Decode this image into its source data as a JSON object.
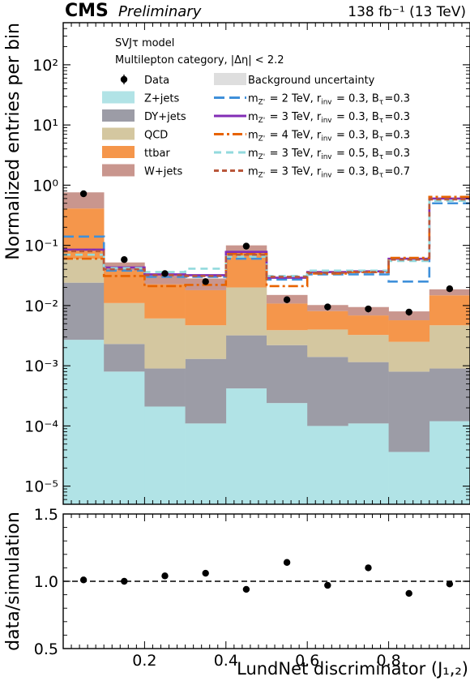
{
  "header": {
    "experiment": "CMS",
    "status": "Preliminary",
    "lumi": "138 fb⁻¹ (13 TeV)"
  },
  "chart_data": [
    {
      "type": "bar",
      "stacked": true,
      "yscale": "log",
      "ylim": [
        5e-06,
        500
      ],
      "xlim": [
        0.0,
        1.0
      ],
      "ylabel": "Normalized entries per bin",
      "ytick_labels": [
        "10⁻⁵",
        "10⁻⁴",
        "10⁻³",
        "10⁻²",
        "10⁻¹",
        "10⁰",
        "10¹",
        "10²"
      ],
      "ytick_values": [
        1e-05,
        0.0001,
        0.001,
        0.01,
        0.1,
        1,
        10,
        100
      ],
      "annotations": [
        "SVJτ model",
        "Multilepton category, |Δη| < 2.2"
      ],
      "bin_edges": [
        0.0,
        0.1,
        0.2,
        0.3,
        0.4,
        0.5,
        0.6,
        0.7,
        0.8,
        0.9,
        1.0
      ],
      "stack": [
        {
          "name": "Z+jets",
          "color": "#b1e3e6",
          "values": [
            0.0027,
            0.0008,
            0.00021,
            0.00011,
            0.00042,
            0.00024,
            0.0001,
            0.00011,
            3.7e-05,
            0.00012
          ]
        },
        {
          "name": "DY+jets",
          "color": "#9c9ca6",
          "values": [
            0.0213,
            0.0015,
            0.00069,
            0.00119,
            0.00278,
            0.00196,
            0.0013,
            0.00104,
            0.000763,
            0.00078
          ]
        },
        {
          "name": "QCD",
          "color": "#d4c7a0",
          "values": [
            0.036,
            0.0087,
            0.0052,
            0.0034,
            0.0168,
            0.0017,
            0.0026,
            0.0021,
            0.0017,
            0.0038
          ]
        },
        {
          "name": "ttbar",
          "color": "#f5964b",
          "values": [
            0.35,
            0.027,
            0.0165,
            0.0133,
            0.056,
            0.0069,
            0.0041,
            0.0036,
            0.0032,
            0.0101
          ]
        },
        {
          "name": "W+jets",
          "color": "#c9968e",
          "values": [
            0.35,
            0.014,
            0.0105,
            0.0102,
            0.024,
            0.0042,
            0.0021,
            0.0026,
            0.0023,
            0.0038
          ]
        }
      ],
      "data": {
        "name": "Data",
        "x": [
          0.05,
          0.15,
          0.25,
          0.35,
          0.45,
          0.55,
          0.65,
          0.75,
          0.85,
          0.95
        ],
        "y": [
          0.72,
          0.058,
          0.034,
          0.025,
          0.097,
          0.0125,
          0.0095,
          0.0088,
          0.0078,
          0.019
        ],
        "err": [
          0.04,
          0.004,
          0.003,
          0.002,
          0.006,
          0.0015,
          0.0012,
          0.0011,
          0.001,
          0.0015
        ]
      },
      "uncertainty_label": "Background uncertainty",
      "signals": [
        {
          "name": "m_{Z'} = 2 TeV, r_{inv} = 0.3, B_{τ}=0.3",
          "color": "#3f90da",
          "dash": "13,6",
          "values": [
            0.14,
            0.038,
            0.03,
            0.03,
            0.06,
            0.027,
            0.033,
            0.033,
            0.025,
            0.5
          ]
        },
        {
          "name": "m_{Z'} = 3 TeV, r_{inv} = 0.3, B_{τ}=0.3",
          "color": "#832db6",
          "dash": "",
          "values": [
            0.085,
            0.043,
            0.033,
            0.032,
            0.078,
            0.029,
            0.036,
            0.037,
            0.06,
            0.6
          ]
        },
        {
          "name": "m_{Z'} = 4 TeV, r_{inv} = 0.3, B_{τ}=0.3",
          "color": "#e76300",
          "dash": "12,4,3,4",
          "values": [
            0.06,
            0.031,
            0.021,
            0.022,
            0.072,
            0.021,
            0.034,
            0.036,
            0.062,
            0.64
          ]
        },
        {
          "name": "m_{Z'} = 3 TeV, r_{inv} = 0.5, B_{τ}=0.3",
          "color": "#92dadd",
          "dash": "9,6",
          "values": [
            0.07,
            0.042,
            0.036,
            0.041,
            0.065,
            0.031,
            0.038,
            0.038,
            0.055,
            0.55
          ]
        },
        {
          "name": "m_{Z'} = 3 TeV, r_{inv} = 0.3, B_{τ}=0.7",
          "color": "#b9573b",
          "dash": "6,4",
          "values": [
            0.08,
            0.04,
            0.032,
            0.031,
            0.07,
            0.03,
            0.035,
            0.036,
            0.058,
            0.58
          ]
        }
      ]
    },
    {
      "type": "scatter",
      "ylabel": "data/simulation",
      "xlabel": "LundNet discriminator (J₁,₂)",
      "xlim": [
        0.0,
        1.0
      ],
      "ylim": [
        0.5,
        1.5
      ],
      "xticks": [
        0.2,
        0.4,
        0.6,
        0.8
      ],
      "xtick_labels": [
        "0.2",
        "0.4",
        "0.6",
        "0.8"
      ],
      "yticks": [
        0.5,
        1.0,
        1.5
      ],
      "ytick_labels": [
        "0.5",
        "1.0",
        "1.5"
      ],
      "reference_line": 1.0,
      "x": [
        0.05,
        0.15,
        0.25,
        0.35,
        0.45,
        0.55,
        0.65,
        0.75,
        0.85,
        0.95
      ],
      "y": [
        1.01,
        1.0,
        1.04,
        1.06,
        0.94,
        1.14,
        0.97,
        1.1,
        0.91,
        0.98
      ]
    }
  ]
}
